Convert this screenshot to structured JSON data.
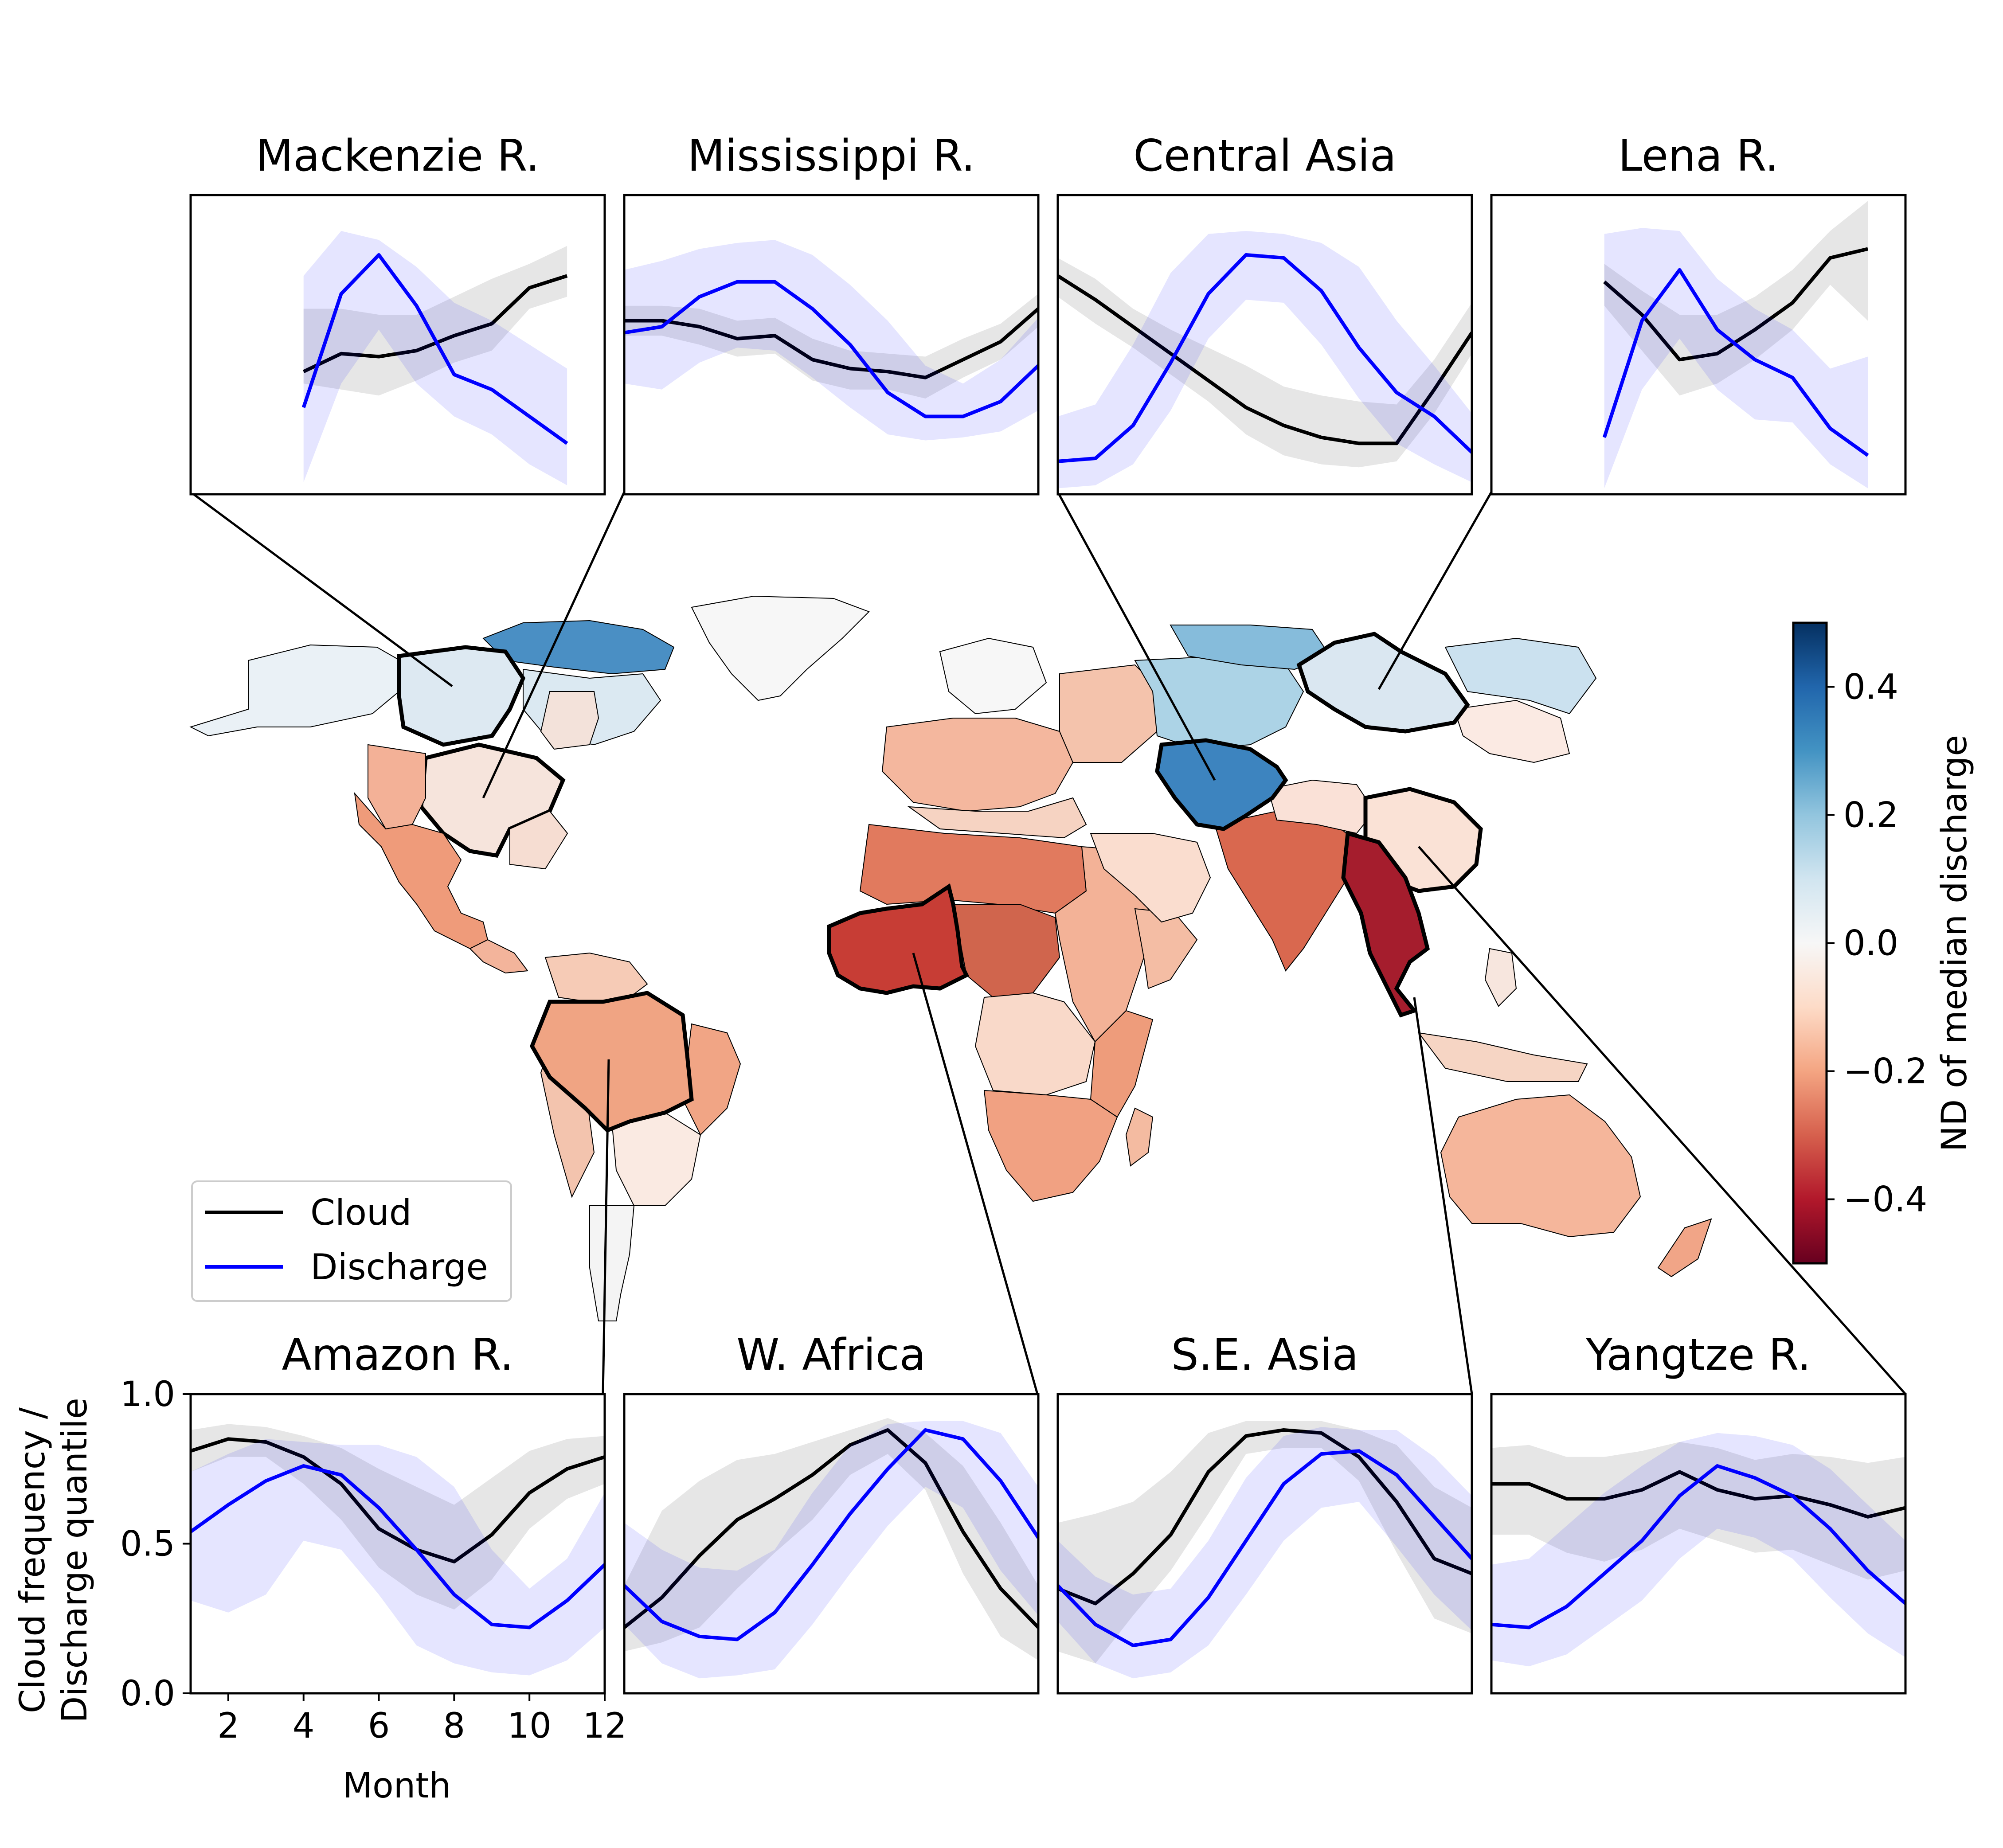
{
  "colorbar": {
    "label": "ND of median discharge",
    "ticks": [
      0.4,
      0.2,
      0.0,
      -0.2,
      -0.4
    ],
    "tick_labels": [
      "0.4",
      "0.2",
      "0.0",
      "−0.2",
      "−0.4"
    ],
    "range": [
      -0.5,
      0.5
    ],
    "colors": [
      "#67001f",
      "#b2182b",
      "#d6604d",
      "#f4a582",
      "#fddbc7",
      "#f7f7f7",
      "#d1e5f0",
      "#92c5de",
      "#4393c3",
      "#2166ac",
      "#053061"
    ]
  },
  "legend": {
    "cloud_label": "Cloud",
    "discharge_label": "Discharge",
    "cloud_color": "#000000",
    "discharge_color": "#0000ff"
  },
  "axes": {
    "ylabel_line1": "Cloud frequency /",
    "ylabel_line2": "Discharge quantile",
    "xlabel": "Month",
    "yticks": [
      "0.0",
      "0.5",
      "1.0"
    ],
    "xticks": [
      "2",
      "4",
      "6",
      "8",
      "10",
      "12"
    ]
  },
  "map_regions": [
    {
      "name": "Mackenzie R.",
      "nd": 0.05
    },
    {
      "name": "Mississippi R.",
      "nd": -0.03
    },
    {
      "name": "Central Asia",
      "nd": 0.35
    },
    {
      "name": "Lena R.",
      "nd": 0.1
    },
    {
      "name": "Amazon R.",
      "nd": -0.2
    },
    {
      "name": "W. Africa",
      "nd": -0.35
    },
    {
      "name": "S.E. Asia",
      "nd": -0.48
    },
    {
      "name": "Yangtze R.",
      "nd": -0.05
    }
  ],
  "chart_data": [
    {
      "type": "line",
      "title": "Mackenzie R.",
      "x": [
        1,
        2,
        3,
        4,
        5,
        6,
        7,
        8,
        9,
        10,
        11,
        12
      ],
      "xlabel": "",
      "ylabel": "",
      "ylim": [
        0,
        1
      ],
      "series": [
        {
          "name": "Cloud",
          "values": [
            null,
            null,
            null,
            0.41,
            0.47,
            0.46,
            0.48,
            0.53,
            0.57,
            0.69,
            0.73,
            null
          ],
          "band_low": [
            null,
            null,
            null,
            0.37,
            0.35,
            0.33,
            0.38,
            0.44,
            0.48,
            0.62,
            0.66,
            null
          ],
          "band_high": [
            null,
            null,
            null,
            0.62,
            0.62,
            0.6,
            0.6,
            0.66,
            0.72,
            0.77,
            0.83,
            null
          ]
        },
        {
          "name": "Discharge",
          "values": [
            null,
            null,
            null,
            0.29,
            0.67,
            0.8,
            0.63,
            0.4,
            0.35,
            0.26,
            0.17,
            null
          ],
          "band_low": [
            null,
            null,
            null,
            0.04,
            0.37,
            0.55,
            0.37,
            0.26,
            0.2,
            0.1,
            0.03,
            null
          ],
          "band_high": [
            null,
            null,
            null,
            0.73,
            0.88,
            0.85,
            0.76,
            0.64,
            0.58,
            0.5,
            0.42,
            null
          ]
        }
      ]
    },
    {
      "type": "line",
      "title": "Mississippi R.",
      "x": [
        1,
        2,
        3,
        4,
        5,
        6,
        7,
        8,
        9,
        10,
        11,
        12
      ],
      "xlabel": "",
      "ylabel": "",
      "ylim": [
        0,
        1
      ],
      "series": [
        {
          "name": "Cloud",
          "values": [
            0.58,
            0.58,
            0.56,
            0.52,
            0.53,
            0.45,
            0.42,
            0.41,
            0.39,
            0.45,
            0.51,
            0.62
          ],
          "band_low": [
            0.53,
            0.53,
            0.5,
            0.46,
            0.47,
            0.38,
            0.35,
            0.35,
            0.32,
            0.39,
            0.45,
            0.56
          ],
          "band_high": [
            0.63,
            0.63,
            0.62,
            0.58,
            0.59,
            0.52,
            0.48,
            0.47,
            0.46,
            0.52,
            0.57,
            0.67
          ]
        },
        {
          "name": "Discharge",
          "values": [
            0.54,
            0.56,
            0.66,
            0.71,
            0.71,
            0.62,
            0.5,
            0.34,
            0.26,
            0.26,
            0.31,
            0.43
          ],
          "band_low": [
            0.37,
            0.35,
            0.44,
            0.49,
            0.48,
            0.39,
            0.29,
            0.2,
            0.18,
            0.19,
            0.21,
            0.28
          ],
          "band_high": [
            0.75,
            0.78,
            0.82,
            0.84,
            0.85,
            0.8,
            0.7,
            0.58,
            0.43,
            0.37,
            0.45,
            0.59
          ]
        }
      ]
    },
    {
      "type": "line",
      "title": "Central Asia",
      "x": [
        1,
        2,
        3,
        4,
        5,
        6,
        7,
        8,
        9,
        10,
        11,
        12
      ],
      "xlabel": "",
      "ylabel": "",
      "ylim": [
        0,
        1
      ],
      "series": [
        {
          "name": "Cloud",
          "values": [
            0.73,
            0.65,
            0.56,
            0.47,
            0.38,
            0.29,
            0.23,
            0.19,
            0.17,
            0.17,
            0.35,
            0.54
          ],
          "band_low": [
            0.66,
            0.57,
            0.49,
            0.4,
            0.31,
            0.2,
            0.13,
            0.1,
            0.09,
            0.11,
            0.27,
            0.47
          ],
          "band_high": [
            0.79,
            0.72,
            0.62,
            0.55,
            0.49,
            0.43,
            0.36,
            0.33,
            0.31,
            0.3,
            0.45,
            0.64
          ]
        },
        {
          "name": "Discharge",
          "values": [
            0.11,
            0.12,
            0.23,
            0.44,
            0.67,
            0.8,
            0.79,
            0.68,
            0.49,
            0.34,
            0.26,
            0.14
          ],
          "band_low": [
            0.02,
            0.03,
            0.1,
            0.28,
            0.52,
            0.65,
            0.64,
            0.5,
            0.32,
            0.17,
            0.1,
            0.04
          ],
          "band_high": [
            0.26,
            0.3,
            0.5,
            0.74,
            0.87,
            0.88,
            0.87,
            0.84,
            0.76,
            0.58,
            0.43,
            0.27
          ]
        }
      ]
    },
    {
      "type": "line",
      "title": "Lena R.",
      "x": [
        1,
        2,
        3,
        4,
        5,
        6,
        7,
        8,
        9,
        10,
        11,
        12
      ],
      "xlabel": "",
      "ylabel": "",
      "ylim": [
        0,
        1
      ],
      "series": [
        {
          "name": "Cloud",
          "values": [
            null,
            null,
            null,
            0.71,
            0.6,
            0.45,
            0.47,
            0.55,
            0.64,
            0.79,
            0.82,
            null
          ],
          "band_low": [
            null,
            null,
            null,
            0.63,
            0.48,
            0.33,
            0.37,
            0.45,
            0.55,
            0.7,
            0.58,
            null
          ],
          "band_high": [
            null,
            null,
            null,
            0.77,
            0.68,
            0.6,
            0.6,
            0.66,
            0.75,
            0.88,
            0.98,
            null
          ]
        },
        {
          "name": "Discharge",
          "values": [
            null,
            null,
            null,
            0.19,
            0.58,
            0.75,
            0.55,
            0.45,
            0.39,
            0.22,
            0.13,
            null
          ],
          "band_low": [
            null,
            null,
            null,
            0.02,
            0.35,
            0.52,
            0.35,
            0.25,
            0.24,
            0.1,
            0.02,
            null
          ],
          "band_high": [
            null,
            null,
            null,
            0.87,
            0.89,
            0.88,
            0.72,
            0.62,
            0.55,
            0.42,
            0.46,
            null
          ]
        }
      ]
    },
    {
      "type": "line",
      "title": "Amazon R.",
      "x": [
        1,
        2,
        3,
        4,
        5,
        6,
        7,
        8,
        9,
        10,
        11,
        12
      ],
      "xlabel": "Month",
      "ylabel": "Cloud frequency / Discharge quantile",
      "ylim": [
        0,
        1
      ],
      "series": [
        {
          "name": "Cloud",
          "values": [
            0.81,
            0.85,
            0.84,
            0.79,
            0.7,
            0.55,
            0.48,
            0.44,
            0.53,
            0.67,
            0.75,
            0.79
          ],
          "band_low": [
            0.74,
            0.79,
            0.79,
            0.7,
            0.58,
            0.42,
            0.33,
            0.28,
            0.38,
            0.55,
            0.65,
            0.7
          ],
          "band_high": [
            0.88,
            0.9,
            0.89,
            0.86,
            0.82,
            0.75,
            0.69,
            0.63,
            0.72,
            0.81,
            0.85,
            0.86
          ]
        },
        {
          "name": "Discharge",
          "values": [
            0.54,
            0.63,
            0.71,
            0.76,
            0.73,
            0.62,
            0.48,
            0.33,
            0.23,
            0.22,
            0.31,
            0.43
          ],
          "band_low": [
            0.31,
            0.27,
            0.33,
            0.51,
            0.48,
            0.33,
            0.16,
            0.1,
            0.07,
            0.06,
            0.11,
            0.22
          ],
          "band_high": [
            0.74,
            0.8,
            0.85,
            0.84,
            0.83,
            0.83,
            0.79,
            0.69,
            0.48,
            0.35,
            0.45,
            0.67
          ]
        }
      ]
    },
    {
      "type": "line",
      "title": "W. Africa",
      "x": [
        1,
        2,
        3,
        4,
        5,
        6,
        7,
        8,
        9,
        10,
        11,
        12
      ],
      "xlabel": "",
      "ylabel": "",
      "ylim": [
        0,
        1
      ],
      "series": [
        {
          "name": "Cloud",
          "values": [
            0.22,
            0.32,
            0.46,
            0.58,
            0.65,
            0.73,
            0.83,
            0.88,
            0.77,
            0.54,
            0.35,
            0.22
          ],
          "band_low": [
            0.14,
            0.17,
            0.22,
            0.35,
            0.47,
            0.58,
            0.73,
            0.8,
            0.68,
            0.4,
            0.19,
            0.11
          ],
          "band_high": [
            0.36,
            0.61,
            0.71,
            0.78,
            0.8,
            0.84,
            0.88,
            0.92,
            0.87,
            0.76,
            0.57,
            0.36
          ]
        },
        {
          "name": "Discharge",
          "values": [
            0.36,
            0.24,
            0.19,
            0.18,
            0.27,
            0.43,
            0.6,
            0.75,
            0.88,
            0.85,
            0.71,
            0.52
          ],
          "band_low": [
            0.23,
            0.1,
            0.05,
            0.06,
            0.08,
            0.23,
            0.4,
            0.56,
            0.69,
            0.62,
            0.41,
            0.26
          ],
          "band_high": [
            0.57,
            0.48,
            0.42,
            0.41,
            0.48,
            0.67,
            0.83,
            0.9,
            0.91,
            0.91,
            0.87,
            0.69
          ]
        }
      ]
    },
    {
      "type": "line",
      "title": "S.E. Asia",
      "x": [
        1,
        2,
        3,
        4,
        5,
        6,
        7,
        8,
        9,
        10,
        11,
        12
      ],
      "xlabel": "",
      "ylabel": "",
      "ylim": [
        0,
        1
      ],
      "series": [
        {
          "name": "Cloud",
          "values": [
            0.35,
            0.3,
            0.4,
            0.53,
            0.74,
            0.86,
            0.88,
            0.87,
            0.79,
            0.64,
            0.45,
            0.4
          ],
          "band_low": [
            0.14,
            0.1,
            0.26,
            0.41,
            0.6,
            0.8,
            0.82,
            0.82,
            0.71,
            0.47,
            0.25,
            0.2
          ],
          "band_high": [
            0.57,
            0.6,
            0.64,
            0.74,
            0.87,
            0.91,
            0.91,
            0.91,
            0.88,
            0.83,
            0.69,
            0.62
          ]
        },
        {
          "name": "Discharge",
          "values": [
            0.36,
            0.23,
            0.16,
            0.18,
            0.32,
            0.51,
            0.7,
            0.8,
            0.81,
            0.73,
            0.59,
            0.45
          ],
          "band_low": [
            0.24,
            0.1,
            0.05,
            0.07,
            0.16,
            0.33,
            0.51,
            0.62,
            0.64,
            0.49,
            0.33,
            0.21
          ],
          "band_high": [
            0.51,
            0.39,
            0.33,
            0.35,
            0.51,
            0.72,
            0.86,
            0.89,
            0.88,
            0.88,
            0.79,
            0.66
          ]
        }
      ]
    },
    {
      "type": "line",
      "title": "Yangtze R.",
      "x": [
        1,
        2,
        3,
        4,
        5,
        6,
        7,
        8,
        9,
        10,
        11,
        12
      ],
      "xlabel": "",
      "ylabel": "",
      "ylim": [
        0,
        1
      ],
      "series": [
        {
          "name": "Cloud",
          "values": [
            0.7,
            0.7,
            0.65,
            0.65,
            0.68,
            0.74,
            0.68,
            0.65,
            0.66,
            0.63,
            0.59,
            0.62
          ],
          "band_low": [
            0.53,
            0.53,
            0.47,
            0.44,
            0.48,
            0.55,
            0.51,
            0.47,
            0.48,
            0.43,
            0.38,
            0.41
          ],
          "band_high": [
            0.82,
            0.83,
            0.79,
            0.79,
            0.81,
            0.84,
            0.82,
            0.78,
            0.8,
            0.79,
            0.77,
            0.79
          ]
        },
        {
          "name": "Discharge",
          "values": [
            0.23,
            0.22,
            0.29,
            0.4,
            0.51,
            0.66,
            0.76,
            0.72,
            0.66,
            0.55,
            0.41,
            0.3
          ],
          "band_low": [
            0.11,
            0.09,
            0.13,
            0.22,
            0.31,
            0.45,
            0.55,
            0.52,
            0.45,
            0.32,
            0.2,
            0.12
          ],
          "band_high": [
            0.43,
            0.45,
            0.56,
            0.67,
            0.76,
            0.84,
            0.87,
            0.86,
            0.83,
            0.75,
            0.63,
            0.51
          ]
        }
      ]
    }
  ]
}
